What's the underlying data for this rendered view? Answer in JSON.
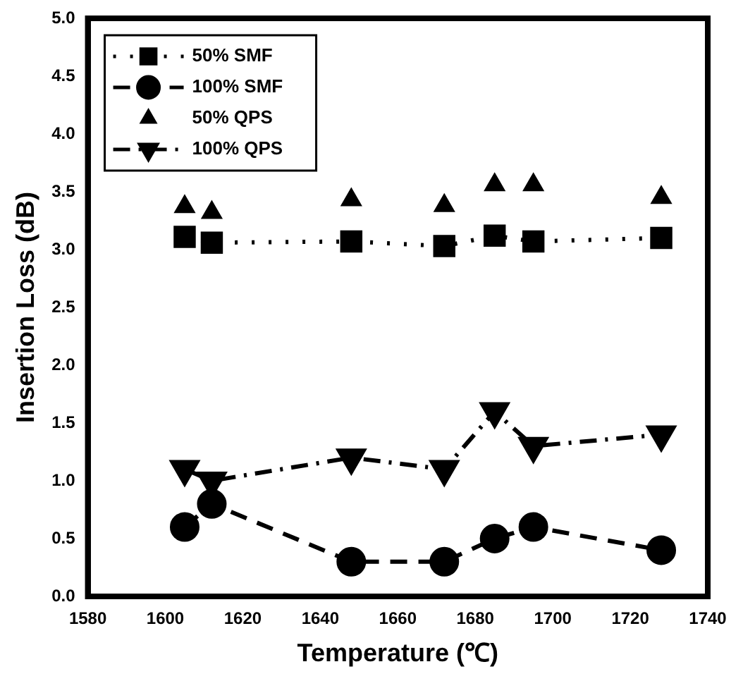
{
  "chart_data": {
    "type": "line",
    "xlabel": "Temperature (℃)",
    "ylabel": "Insertion Loss (dB)",
    "x": [
      1605,
      1612,
      1648,
      1672,
      1685,
      1695,
      1728
    ],
    "xlim": [
      1580,
      1740
    ],
    "xticks": [
      1580,
      1600,
      1620,
      1640,
      1660,
      1680,
      1700,
      1720,
      1740
    ],
    "ylim": [
      0,
      5
    ],
    "yticks": [
      {
        "value": 0,
        "label": "0.0"
      },
      {
        "value": 0.5,
        "label": "0.5"
      },
      {
        "value": 1,
        "label": "1.0"
      },
      {
        "value": 1.5,
        "label": "1.5"
      },
      {
        "value": 2,
        "label": "2.0"
      },
      {
        "value": 2.5,
        "label": "2.5"
      },
      {
        "value": 3,
        "label": "3.0"
      },
      {
        "value": 3.5,
        "label": "3.5"
      },
      {
        "value": 4,
        "label": "4.0"
      },
      {
        "value": 4.5,
        "label": "4.5"
      },
      {
        "value": 5,
        "label": "5.0"
      }
    ],
    "grid": false,
    "legend": "top left",
    "series": [
      {
        "name": "50% SMF",
        "color": "#000000",
        "marker": "square",
        "line_style": "dotted",
        "values": [
          3.11,
          3.06,
          3.07,
          3.03,
          3.12,
          3.07,
          3.1
        ]
      },
      {
        "name": "100% SMF",
        "color": "#000000",
        "marker": "circle",
        "line_style": "dashed",
        "values": [
          0.6,
          0.8,
          0.3,
          0.3,
          0.5,
          0.6,
          0.4
        ]
      },
      {
        "name": "50% QPS",
        "type": "scatter",
        "color": "#000000",
        "marker": "triangle",
        "values": [
          3.37,
          3.32,
          3.43,
          3.38,
          3.56,
          3.56,
          3.45
        ]
      },
      {
        "name": "100% QPS",
        "color": "#000000",
        "marker": "triangle-down",
        "line_style": "dashdot",
        "values": [
          1.1,
          1.0,
          1.2,
          1.1,
          1.6,
          1.3,
          1.4
        ]
      }
    ]
  }
}
